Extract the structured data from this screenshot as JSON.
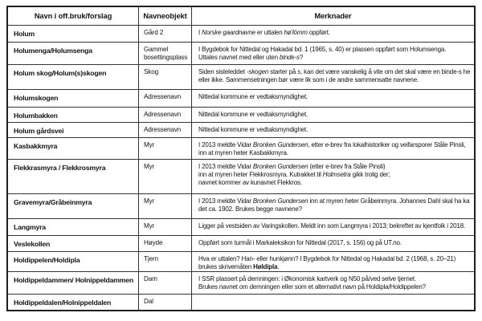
{
  "document": {
    "headers": [
      {
        "label": "Navn i off.bruk/forslag"
      },
      {
        "label": "Navneobjekt"
      },
      {
        "label": "Merknader"
      }
    ],
    "rows": [
      {
        "name": "Holum",
        "object": "Gård 2",
        "remarks": [
          [
            {
              "t": "I "
            },
            {
              "t": "Norske gaardnavne",
              "i": true
            },
            {
              "t": " er uttalen "
            },
            {
              "t": "hø'lómm",
              "i": true
            },
            {
              "t": " oppført."
            }
          ]
        ]
      },
      {
        "name": "Holumenga/Holumsenga",
        "object": "Gammel bosettingsplass",
        "remarks": [
          [
            {
              "t": "I Bygdebok for Nittedal og Hakadal bd. 1 (1965, s. 40) er plassen oppført som Holumsenga."
            }
          ],
          [
            {
              "t": "Uttales navnet med eller uten "
            },
            {
              "t": "binde-s",
              "i": true
            },
            {
              "t": "?"
            }
          ]
        ]
      },
      {
        "name": "Holum skog/Holum(s)skogen",
        "object": "Skog",
        "remarks": [
          [
            {
              "t": "Siden sisteleddet "
            },
            {
              "t": "-skogen",
              "i": true
            },
            {
              "t": " starter på "
            },
            {
              "t": "s",
              "i": true
            },
            {
              "t": ", kan det være vanskelig å vite om det skal være en binde-s her"
            }
          ],
          [
            {
              "t": "eller ikke. Sammensetningen bør være lik som i de andre sammensatte navnene."
            }
          ]
        ]
      },
      {
        "name": "Holumskogen",
        "object": "Adressenavn",
        "remarks": [
          [
            {
              "t": "Nittedal kommune er vedtaksmyndighet."
            }
          ]
        ]
      },
      {
        "name": "Holumbakken",
        "object": "Adressenavn",
        "remarks": [
          [
            {
              "t": "Nittedal kommune er vedtaksmyndighet."
            }
          ]
        ]
      },
      {
        "name": "Holum gårdsvei",
        "object": "Adressenavn",
        "remarks": [
          [
            {
              "t": "Nittedal kommune er vedtaksmyndighet."
            }
          ]
        ]
      },
      {
        "name": "Kasbakkmyra",
        "object": "Myr",
        "remarks": [
          [
            {
              "t": "I 2013 meldte Vidar "
            },
            {
              "t": "Bronken Gundersen",
              "i": true
            },
            {
              "t": ", etter e-brev fra lokalhistoriker og veifarsporer Ståle Pinsli,"
            }
          ],
          [
            {
              "t": "inn at myren heter Kasbakkmyra."
            }
          ]
        ]
      },
      {
        "name": "Flekkrasmyra / Flekkrosmyra",
        "object": "Myr",
        "remarks": [
          [
            {
              "t": "I 2013 meldte Vidar "
            },
            {
              "t": "Bronken Gundersen",
              "i": true
            },
            {
              "t": " (etter e-brev fra Ståle Pinsli)"
            }
          ],
          [
            {
              "t": "inn at myren heter Flekkrosmyra. Kutrakket til "
            },
            {
              "t": "Holmsetra",
              "i": true
            },
            {
              "t": " gikk trolig der;"
            }
          ],
          [
            {
              "t": "navnet kommer av kunavnet Flekkros."
            }
          ]
        ]
      },
      {
        "name": "Gravemyra/Gråbeinmyra",
        "object": "Myr",
        "remarks": [
          [
            {
              "t": "I 2013 meldte Vidar "
            },
            {
              "t": "Bronken Gundersen",
              "i": true
            },
            {
              "t": " inn at myren heter Gråbeinmyra. Johannes Dahl skal ha kalt den"
            }
          ],
          [
            {
              "t": "det ca. 1902. Brukes begge navnene?"
            }
          ]
        ]
      },
      {
        "name": "Langmyra",
        "object": "Myr",
        "remarks": [
          [
            {
              "t": "Ligger på vestsiden av Varingskollen. Meldt inn som Langmyra i 2013; bekreftet av kjentfolk i 2018."
            }
          ]
        ]
      },
      {
        "name": "Veslekollen",
        "object": "Høyde",
        "remarks": [
          [
            {
              "t": "Oppført som turmål i Markaleksikon for Nittedal (2017, s. 156) og på UT.no."
            }
          ]
        ]
      },
      {
        "name": "Holdippelen/Holdipla",
        "object": "Tjern",
        "remarks": [
          [
            {
              "t": "Hva er uttalen? Han- eller hunkjønn? I Bygdebok for Nittedal og Hakadal bd. 2 (1968, s. 20–21)"
            }
          ],
          [
            {
              "t": "brukes skrivemåten "
            },
            {
              "t": "Høldipla",
              "b": true
            },
            {
              "t": "."
            }
          ]
        ]
      },
      {
        "name": "Holdippeldammen/ Holnippeldammen",
        "object": "Dam",
        "remarks": [
          [
            {
              "t": "I SSR plassert på demningen: i Økonomisk kartverk og N50 på/ved selve tjernet."
            }
          ],
          [
            {
              "t": "Brukes navnet om demningen eller som et alternativt navn på Holdipla/Holdippelen?"
            }
          ]
        ]
      },
      {
        "name": "Holdippeldalen/Holnippeldalen",
        "object": "Dal",
        "remarks": []
      }
    ]
  }
}
